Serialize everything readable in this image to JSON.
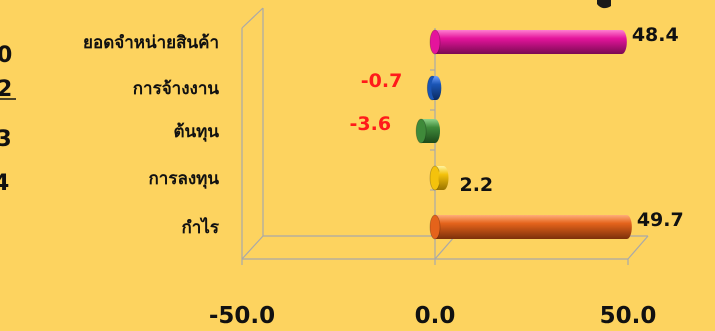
{
  "chart_data": {
    "type": "bar",
    "orientation": "horizontal",
    "style": "3d-cylinder",
    "categories": [
      "ยอดจำหน่ายสินค้า",
      "การจ้างงาน",
      "ต้นทุน",
      "การลงทุน",
      "กำไร"
    ],
    "values": [
      48.4,
      -0.7,
      -3.6,
      2.2,
      49.7
    ],
    "value_labels": [
      "48.4",
      "-0.7",
      "-3.6",
      "2.2",
      "49.7"
    ],
    "bar_colors": [
      "#e4149c",
      "#1a55b5",
      "#3f8a3a",
      "#f4c20c",
      "#e4631b"
    ],
    "label_colors": {
      "positive": "#111111",
      "negative": "#ff1a1a"
    },
    "xlim": [
      -50,
      50
    ],
    "xticks": [
      "-50.0",
      "0.0",
      "50.0"
    ],
    "grid": false,
    "legend": "none",
    "title": "",
    "xlabel": "",
    "ylabel": ""
  },
  "clipped_left_labels": [
    "0",
    "2",
    ".3",
    "4"
  ]
}
